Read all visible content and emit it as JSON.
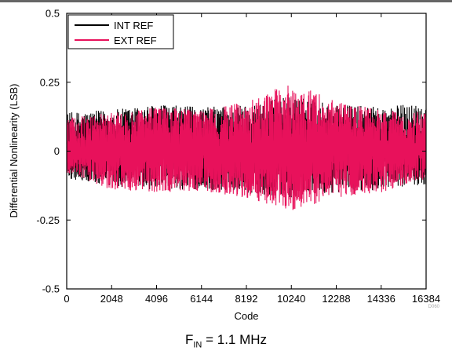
{
  "chart_data": {
    "type": "line",
    "title": "",
    "xlabel": "Code",
    "ylabel": "Differential Nonlinearity (LSB)",
    "xlim": [
      0,
      16384
    ],
    "ylim": [
      -0.5,
      0.5
    ],
    "x_ticks": [
      0,
      2048,
      4096,
      6144,
      8192,
      10240,
      12288,
      14336,
      16384
    ],
    "x_tick_labels": [
      "0",
      "2048",
      "4096",
      "6144",
      "8192",
      "10240",
      "12288",
      "14336",
      "16384"
    ],
    "y_ticks": [
      0.5,
      0.25,
      0,
      -0.25,
      -0.5
    ],
    "y_tick_labels": [
      "0.5",
      "0.25",
      "0",
      "-0.25",
      "-0.5"
    ],
    "grid": false,
    "legend_position": "top-left",
    "series": [
      {
        "name": "INT REF",
        "color": "#000000",
        "envelope": {
          "x": [
            0,
            2048,
            4096,
            6144,
            8192,
            10240,
            12288,
            14336,
            16384
          ],
          "upper": [
            0.14,
            0.15,
            0.17,
            0.16,
            0.17,
            0.2,
            0.17,
            0.16,
            0.18
          ],
          "lower": [
            -0.1,
            -0.13,
            -0.14,
            -0.14,
            -0.15,
            -0.17,
            -0.15,
            -0.14,
            -0.12
          ]
        }
      },
      {
        "name": "EXT REF",
        "color": "#e8115b",
        "envelope": {
          "x": [
            0,
            2048,
            4096,
            6144,
            8192,
            10240,
            12288,
            14336,
            16384
          ],
          "upper": [
            0.12,
            0.14,
            0.16,
            0.15,
            0.18,
            0.25,
            0.18,
            0.15,
            0.14
          ],
          "lower": [
            -0.09,
            -0.14,
            -0.15,
            -0.15,
            -0.17,
            -0.22,
            -0.17,
            -0.15,
            -0.1
          ]
        }
      }
    ]
  },
  "figure_id": "D060",
  "caption": {
    "prefix": "F",
    "subscript": "IN",
    "suffix": " = 1.1 MHz"
  }
}
